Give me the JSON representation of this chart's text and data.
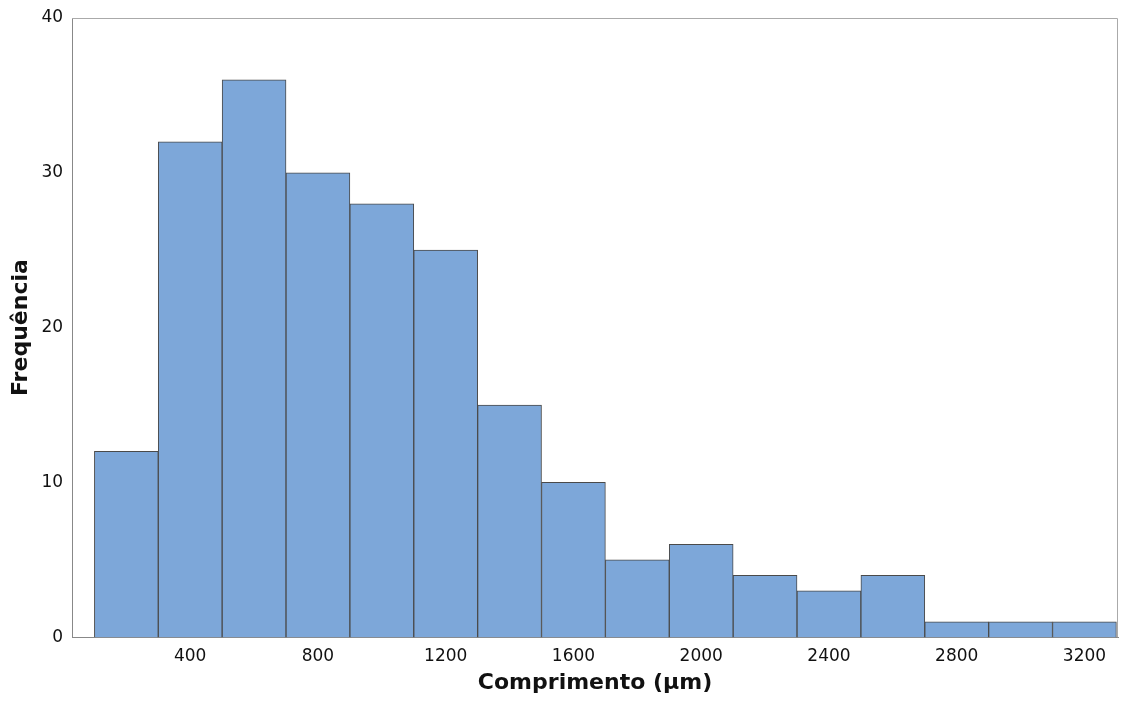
{
  "chart_data": {
    "type": "histogram",
    "xlabel": "Comprimento (µm)",
    "ylabel": "Frequência",
    "bins": [
      100,
      300,
      500,
      700,
      900,
      1100,
      1300,
      1500,
      1700,
      1900,
      2100,
      2300,
      2500,
      2700,
      2900,
      3100,
      3300
    ],
    "values": [
      12,
      32,
      36,
      30,
      28,
      25,
      15,
      10,
      5,
      6,
      4,
      3,
      4,
      1,
      1,
      1
    ],
    "color": "#7da7d9",
    "xlim": [
      30,
      3305
    ],
    "xticks": [
      400,
      800,
      1200,
      1600,
      2000,
      2400,
      2800,
      3200
    ],
    "ylim": [
      0,
      40
    ],
    "yticks": [
      0,
      10,
      20,
      30,
      40
    ]
  }
}
